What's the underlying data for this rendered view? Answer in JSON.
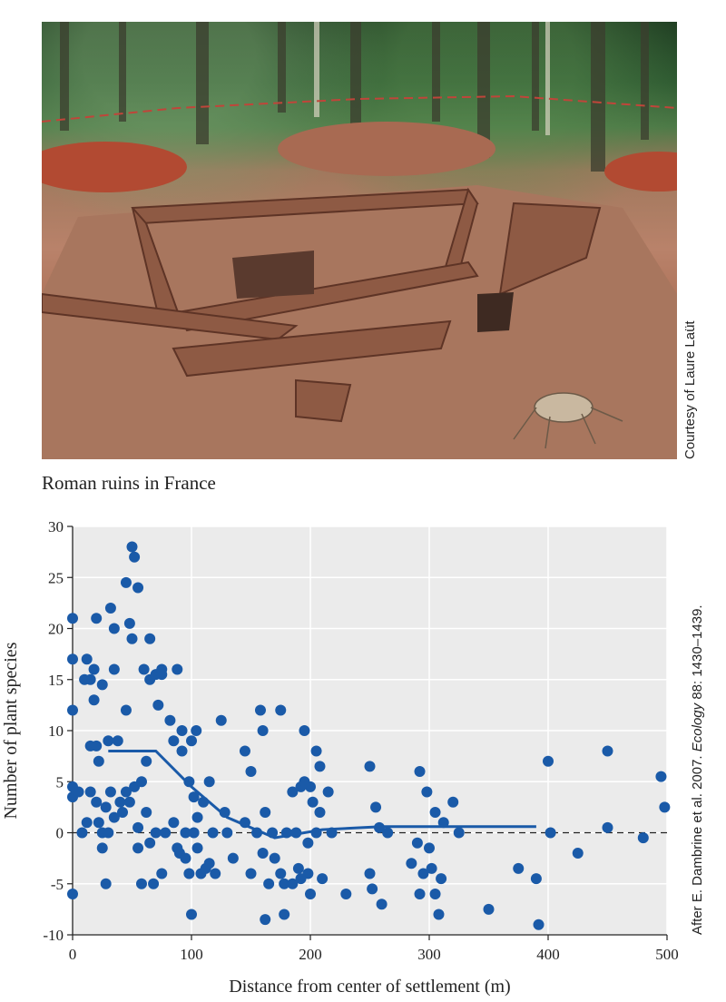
{
  "photo": {
    "caption": "Roman ruins in France",
    "credit": "Courtesy of Laure Laüt"
  },
  "source": {
    "prefix": "After E. Dambrine et al. 2007. ",
    "journal": "Ecology",
    "suffix": " 88: 1430–1439."
  },
  "colors": {
    "points": "#1a5aa8",
    "trend": "#1a5aa8",
    "plot_bg": "#ebebeb",
    "grid": "#ffffff"
  },
  "chart_data": {
    "type": "scatter",
    "xlabel": "Distance from center of settlement (m)",
    "ylabel": "Number of plant species",
    "xlim": [
      0,
      500
    ],
    "ylim": [
      -10,
      30
    ],
    "xticks": [
      0,
      100,
      200,
      300,
      400,
      500
    ],
    "yticks": [
      -10,
      -5,
      0,
      5,
      10,
      15,
      20,
      25,
      30
    ],
    "grid": true,
    "zero_line": "dashed",
    "points": [
      [
        0,
        21
      ],
      [
        0,
        17
      ],
      [
        0,
        12
      ],
      [
        0,
        4.5
      ],
      [
        0,
        3.5
      ],
      [
        0,
        -6
      ],
      [
        5,
        4
      ],
      [
        8,
        0
      ],
      [
        10,
        15
      ],
      [
        12,
        17
      ],
      [
        12,
        1
      ],
      [
        15,
        4
      ],
      [
        15,
        8.5
      ],
      [
        15,
        15
      ],
      [
        18,
        13
      ],
      [
        18,
        16
      ],
      [
        20,
        8.5
      ],
      [
        20,
        21
      ],
      [
        20,
        3
      ],
      [
        22,
        1
      ],
      [
        22,
        7
      ],
      [
        25,
        14.5
      ],
      [
        25,
        0
      ],
      [
        25,
        -1.5
      ],
      [
        28,
        2.5
      ],
      [
        28,
        -5
      ],
      [
        30,
        9
      ],
      [
        30,
        0
      ],
      [
        32,
        22
      ],
      [
        32,
        4
      ],
      [
        35,
        16
      ],
      [
        35,
        20
      ],
      [
        35,
        1.5
      ],
      [
        38,
        9
      ],
      [
        40,
        3
      ],
      [
        42,
        2
      ],
      [
        45,
        4
      ],
      [
        45,
        24.5
      ],
      [
        45,
        12
      ],
      [
        48,
        20.5
      ],
      [
        48,
        3
      ],
      [
        50,
        28
      ],
      [
        50,
        19
      ],
      [
        52,
        27
      ],
      [
        52,
        4.5
      ],
      [
        55,
        24
      ],
      [
        55,
        0.5
      ],
      [
        55,
        -1.5
      ],
      [
        58,
        5
      ],
      [
        58,
        -5
      ],
      [
        60,
        16
      ],
      [
        62,
        2
      ],
      [
        62,
        7
      ],
      [
        65,
        19
      ],
      [
        65,
        15
      ],
      [
        65,
        -1
      ],
      [
        68,
        -5
      ],
      [
        70,
        0
      ],
      [
        70,
        15.5
      ],
      [
        72,
        12.5
      ],
      [
        75,
        15.5
      ],
      [
        75,
        -4
      ],
      [
        75,
        16
      ],
      [
        78,
        0
      ],
      [
        82,
        11
      ],
      [
        85,
        1
      ],
      [
        85,
        9
      ],
      [
        88,
        16
      ],
      [
        88,
        -1.5
      ],
      [
        90,
        -2
      ],
      [
        92,
        8
      ],
      [
        92,
        10
      ],
      [
        95,
        0
      ],
      [
        95,
        -2.5
      ],
      [
        98,
        5
      ],
      [
        98,
        -4
      ],
      [
        100,
        9
      ],
      [
        100,
        -8
      ],
      [
        102,
        3.5
      ],
      [
        102,
        0
      ],
      [
        104,
        10
      ],
      [
        105,
        1.5
      ],
      [
        105,
        -1.5
      ],
      [
        108,
        -4
      ],
      [
        110,
        3
      ],
      [
        112,
        -3.5
      ],
      [
        115,
        5
      ],
      [
        115,
        -3
      ],
      [
        118,
        0
      ],
      [
        120,
        -4
      ],
      [
        125,
        11
      ],
      [
        128,
        2
      ],
      [
        130,
        0
      ],
      [
        135,
        -2.5
      ],
      [
        145,
        8
      ],
      [
        145,
        1
      ],
      [
        150,
        6
      ],
      [
        150,
        -4
      ],
      [
        155,
        0
      ],
      [
        158,
        12
      ],
      [
        160,
        10
      ],
      [
        160,
        -2
      ],
      [
        162,
        2
      ],
      [
        162,
        -8.5
      ],
      [
        165,
        -5
      ],
      [
        168,
        0
      ],
      [
        170,
        -2.5
      ],
      [
        175,
        12
      ],
      [
        175,
        -4
      ],
      [
        178,
        -5
      ],
      [
        178,
        -8
      ],
      [
        180,
        0
      ],
      [
        185,
        4
      ],
      [
        185,
        -5
      ],
      [
        188,
        0
      ],
      [
        190,
        -3.5
      ],
      [
        192,
        4.5
      ],
      [
        192,
        -4.5
      ],
      [
        195,
        10
      ],
      [
        195,
        5
      ],
      [
        198,
        -1
      ],
      [
        198,
        -4
      ],
      [
        200,
        4.5
      ],
      [
        200,
        -6
      ],
      [
        202,
        3
      ],
      [
        205,
        8
      ],
      [
        205,
        0
      ],
      [
        208,
        6.5
      ],
      [
        208,
        2
      ],
      [
        210,
        -4.5
      ],
      [
        215,
        4
      ],
      [
        218,
        0
      ],
      [
        230,
        -6
      ],
      [
        250,
        6.5
      ],
      [
        250,
        -4
      ],
      [
        252,
        -5.5
      ],
      [
        255,
        2.5
      ],
      [
        258,
        0.5
      ],
      [
        260,
        -7
      ],
      [
        265,
        0
      ],
      [
        285,
        -3
      ],
      [
        290,
        -1
      ],
      [
        292,
        6
      ],
      [
        292,
        -6
      ],
      [
        295,
        -4
      ],
      [
        298,
        4
      ],
      [
        300,
        -1.5
      ],
      [
        302,
        -3.5
      ],
      [
        305,
        2
      ],
      [
        305,
        -6
      ],
      [
        308,
        -8
      ],
      [
        310,
        -4.5
      ],
      [
        312,
        1
      ],
      [
        320,
        3
      ],
      [
        325,
        0
      ],
      [
        350,
        -7.5
      ],
      [
        375,
        -3.5
      ],
      [
        390,
        -4.5
      ],
      [
        392,
        -9
      ],
      [
        400,
        7
      ],
      [
        402,
        0
      ],
      [
        425,
        -2
      ],
      [
        450,
        8
      ],
      [
        450,
        0.5
      ],
      [
        480,
        -0.5
      ],
      [
        495,
        5.5
      ],
      [
        498,
        2.5
      ]
    ],
    "trend_line": [
      [
        30,
        8
      ],
      [
        70,
        8
      ],
      [
        100,
        4.5
      ],
      [
        130,
        1.5
      ],
      [
        170,
        -0.5
      ],
      [
        210,
        0.3
      ],
      [
        260,
        0.6
      ],
      [
        330,
        0.6
      ],
      [
        390,
        0.6
      ]
    ]
  }
}
